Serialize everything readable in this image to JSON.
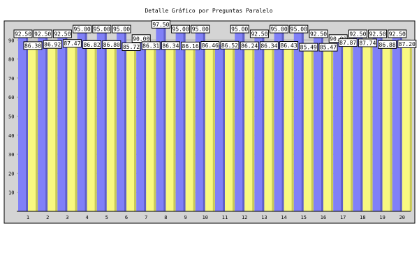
{
  "chart_data": {
    "type": "bar",
    "title": "Detalle Gráfico por Preguntas Paralelo",
    "categories": [
      "1",
      "2",
      "3",
      "4",
      "5",
      "6",
      "7",
      "8",
      "9",
      "10",
      "11",
      "12",
      "13",
      "14",
      "15",
      "16",
      "17",
      "18",
      "19",
      "20"
    ],
    "series": [
      {
        "values": [
          92.5,
          92.5,
          92.5,
          95.0,
          95.0,
          95.0,
          90.0,
          97.5,
          95.0,
          95.0,
          87.5,
          95.0,
          92.5,
          95.0,
          95.0,
          92.5,
          90.0,
          92.5,
          92.5,
          92.5
        ]
      },
      {
        "values": [
          86.3,
          86.92,
          87.47,
          86.82,
          86.8,
          85.72,
          86.31,
          86.34,
          86.16,
          86.46,
          86.52,
          86.24,
          86.34,
          86.43,
          85.49,
          85.47,
          87.87,
          87.74,
          86.88,
          87.2
        ]
      }
    ],
    "label_texts": [
      [
        "92.50",
        "92.50",
        "92.50",
        "95.00",
        "95.00",
        "95.00",
        "90.00",
        "97.50",
        "95.00",
        "95.00",
        "",
        "95.00",
        "92.50",
        "95.00",
        "95.00",
        "92.50",
        "90.00",
        "92.50",
        "92.50",
        "92.50"
      ],
      [
        "86.30",
        "86.92",
        "87.47",
        "86.82",
        "86.80",
        "85.72",
        "86.31",
        "86.34",
        "86.16",
        "86.46",
        "86.52",
        "86.24",
        "86.34",
        "86.43",
        "85.49",
        "85.47",
        "87.87",
        "87.74",
        "86.88",
        "87.20"
      ]
    ],
    "y_ticks": [
      "10",
      "20",
      "30",
      "40",
      "50",
      "60",
      "70",
      "80",
      "90"
    ],
    "ylim": [
      0,
      100
    ],
    "grid": true,
    "colors": {
      "series1": "#8080f8",
      "series1_shadow": "#6060c8",
      "series2": "#f8f880",
      "series2_shadow": "#c8c858",
      "plot_background": "#d4d4d4",
      "gridline": "#a0a0a0",
      "frame": "#000000",
      "label_box": "#ffffff"
    }
  }
}
